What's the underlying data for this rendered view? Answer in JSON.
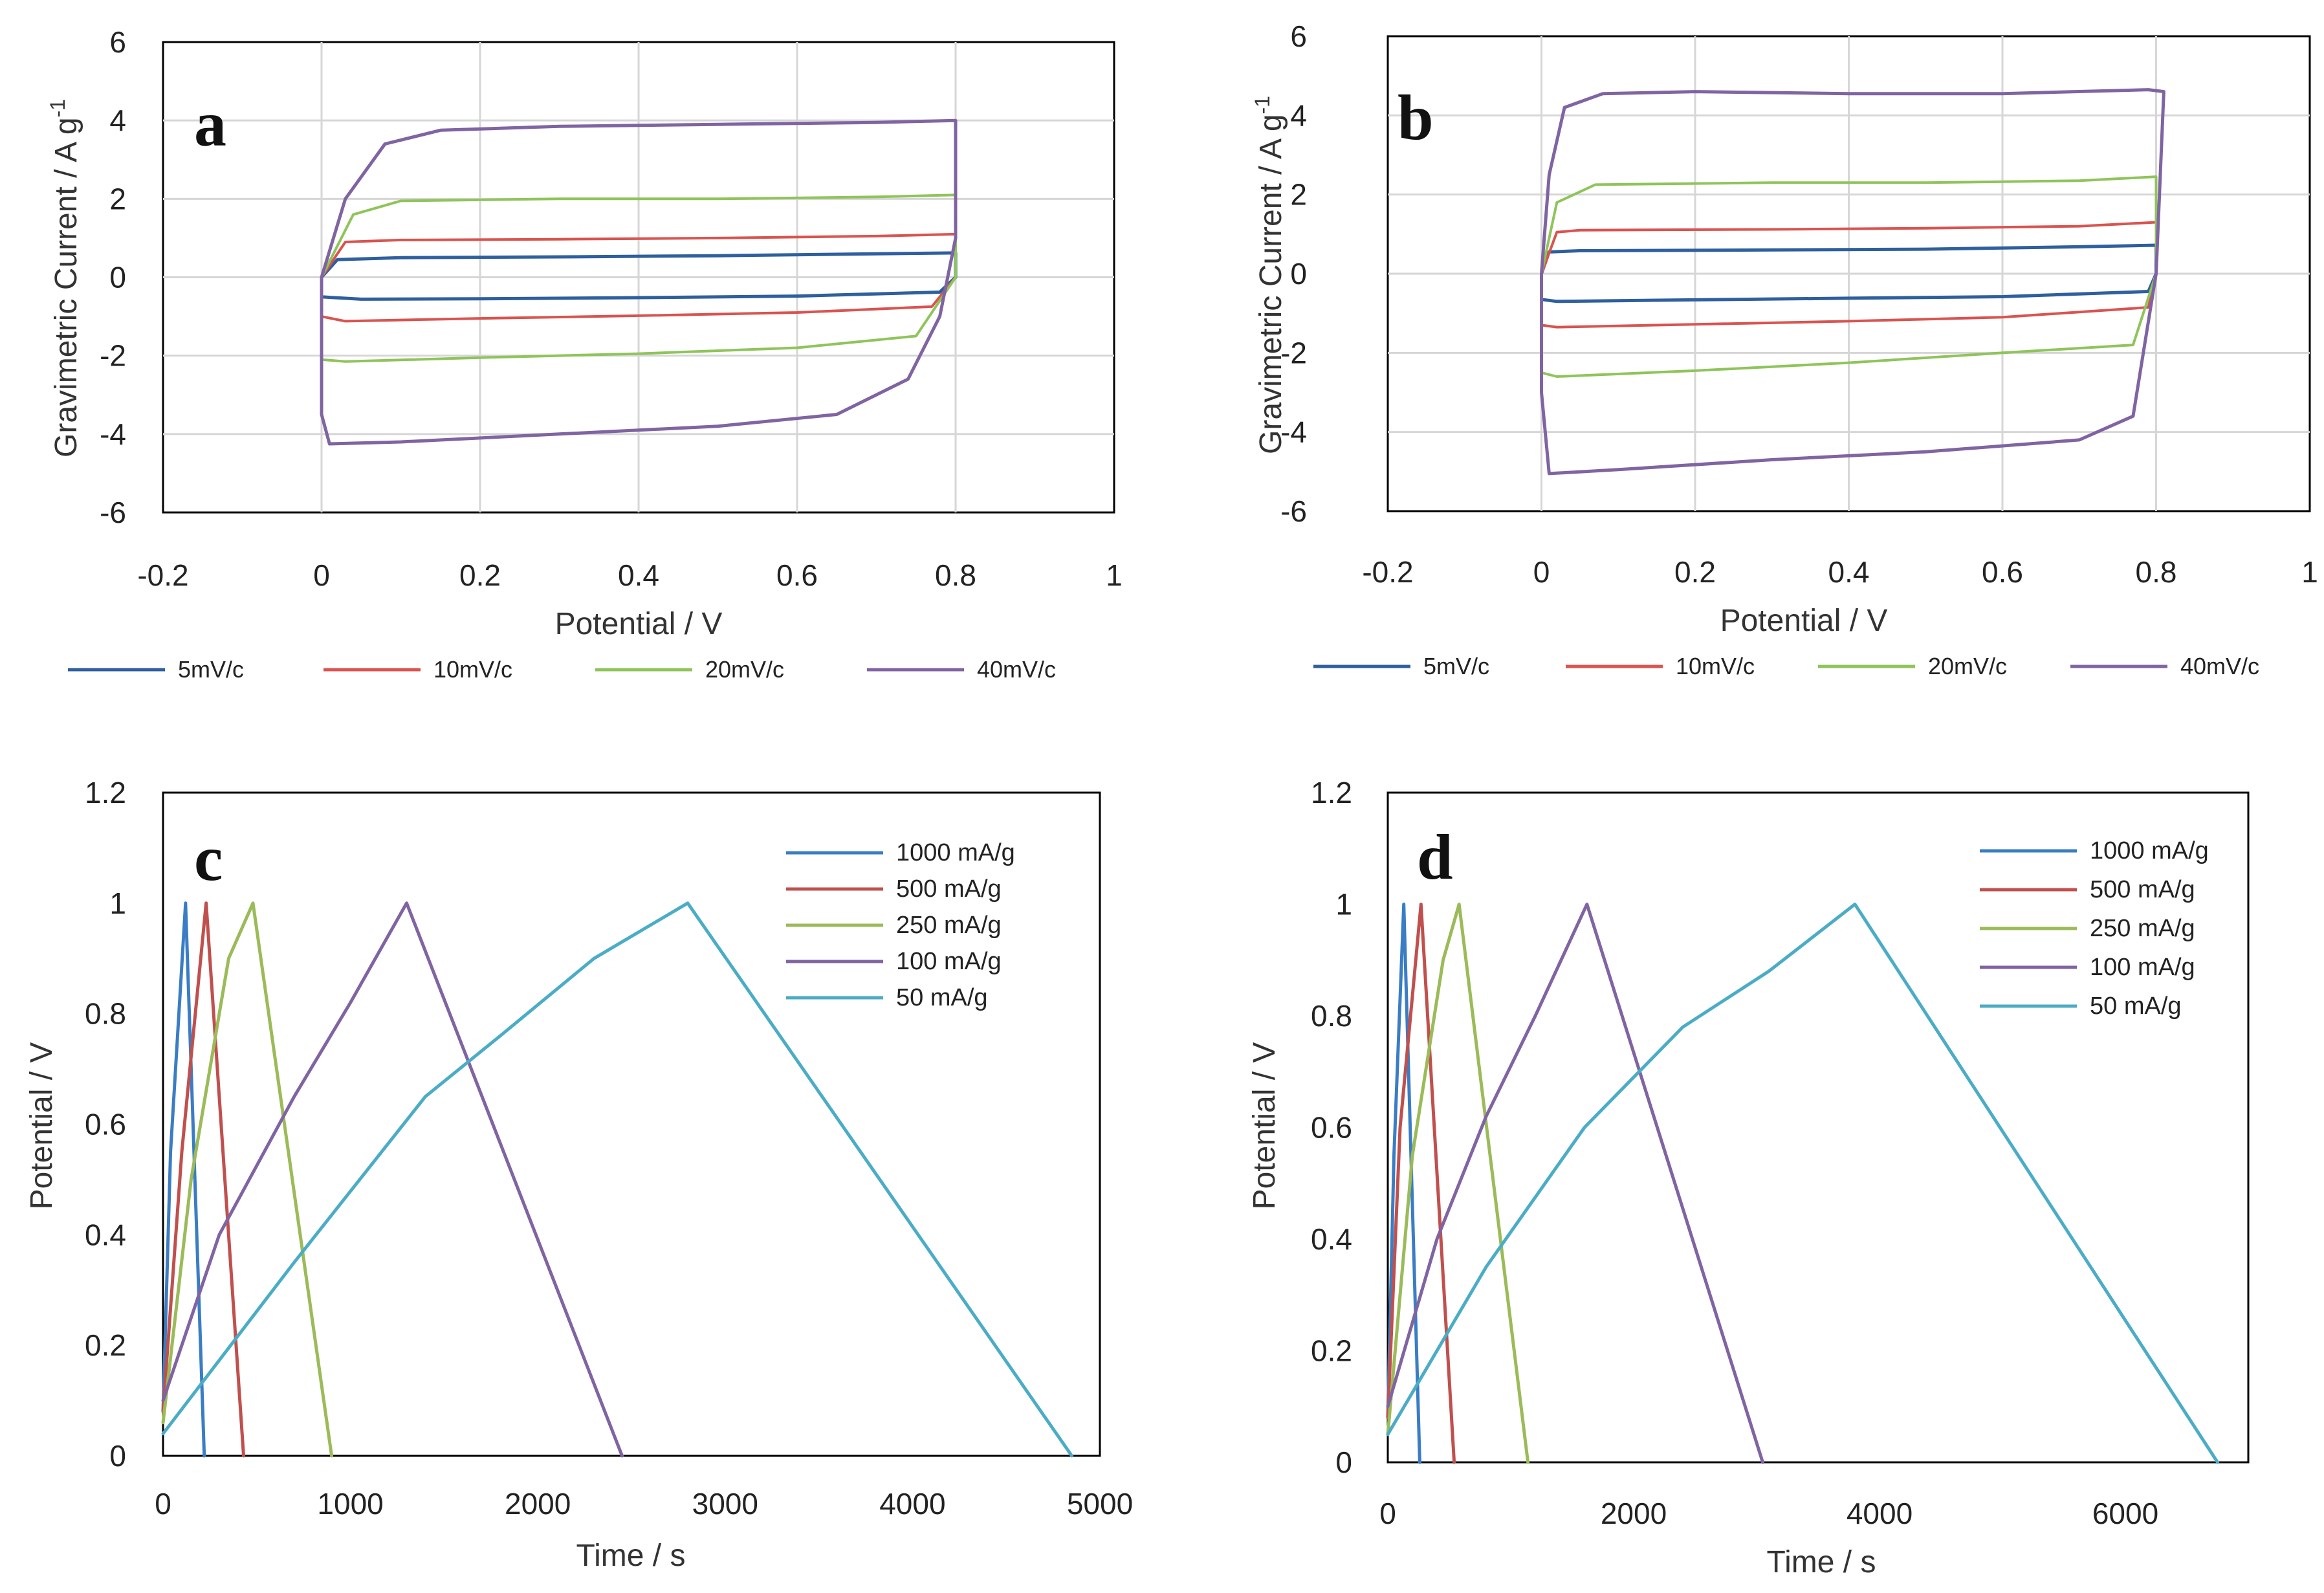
{
  "chart_data": [
    {
      "panel": "a",
      "type": "line",
      "xlabel": "Potential / V",
      "ylabel": "Gravimetric Current / A g",
      "ylabel_sup": "-1",
      "xlim": [
        -0.2,
        1
      ],
      "ylim": [
        -6,
        6
      ],
      "xticks": [
        "-0.2",
        "0",
        "0.2",
        "0.4",
        "0.6",
        "0.8",
        "1"
      ],
      "yticks": [
        "6",
        "4",
        "2",
        "0",
        "-2",
        "-4",
        "-6"
      ],
      "grid": true,
      "legend_position": "bottom",
      "series": [
        {
          "name": "5mV/c",
          "color": "#2e5f9e",
          "width": 5,
          "x": [
            0.0,
            0.02,
            0.1,
            0.3,
            0.5,
            0.7,
            0.8,
            0.8,
            0.78,
            0.6,
            0.4,
            0.2,
            0.05,
            0.0,
            0.0
          ],
          "y": [
            0.0,
            0.45,
            0.5,
            0.52,
            0.55,
            0.6,
            0.62,
            0.0,
            -0.38,
            -0.48,
            -0.52,
            -0.55,
            -0.56,
            -0.5,
            0.0
          ]
        },
        {
          "name": "10mV/c",
          "color": "#d9534f",
          "width": 4,
          "x": [
            0.0,
            0.03,
            0.1,
            0.3,
            0.5,
            0.7,
            0.8,
            0.8,
            0.77,
            0.6,
            0.4,
            0.2,
            0.03,
            0.0,
            0.0
          ],
          "y": [
            0.0,
            0.9,
            0.95,
            0.97,
            1.0,
            1.05,
            1.1,
            0.0,
            -0.75,
            -0.9,
            -0.98,
            -1.05,
            -1.12,
            -1.0,
            0.0
          ]
        },
        {
          "name": "20mV/c",
          "color": "#8fc45a",
          "width": 4,
          "x": [
            0.0,
            0.04,
            0.1,
            0.3,
            0.5,
            0.7,
            0.8,
            0.8,
            0.75,
            0.6,
            0.4,
            0.2,
            0.03,
            0.0,
            0.0
          ],
          "y": [
            0.0,
            1.6,
            1.95,
            2.0,
            2.0,
            2.05,
            2.1,
            0.0,
            -1.5,
            -1.8,
            -1.95,
            -2.05,
            -2.15,
            -2.1,
            0.0
          ]
        },
        {
          "name": "40mV/c",
          "color": "#8064a2",
          "width": 5,
          "x": [
            0.0,
            0.03,
            0.08,
            0.15,
            0.3,
            0.5,
            0.7,
            0.8,
            0.8,
            0.78,
            0.74,
            0.65,
            0.5,
            0.3,
            0.1,
            0.01,
            0.0,
            0.0
          ],
          "y": [
            0.0,
            2.0,
            3.4,
            3.75,
            3.85,
            3.9,
            3.95,
            4.0,
            1.0,
            -1.0,
            -2.6,
            -3.5,
            -3.8,
            -4.0,
            -4.2,
            -4.25,
            -3.5,
            0.0
          ]
        }
      ]
    },
    {
      "panel": "b",
      "type": "line",
      "xlabel": "Potential / V",
      "ylabel": "Gravimetric Current / A g",
      "ylabel_sup": "-1",
      "xlim": [
        -0.2,
        1
      ],
      "ylim": [
        -6,
        6
      ],
      "xticks": [
        "-0.2",
        "0",
        "0.2",
        "0.4",
        "0.6",
        "0.8",
        "1"
      ],
      "yticks": [
        "6",
        "4",
        "2",
        "0",
        "-2",
        "-4",
        "-6"
      ],
      "grid": true,
      "legend_position": "bottom",
      "series": [
        {
          "name": "5mV/c",
          "color": "#2e5f9e",
          "width": 5,
          "x": [
            0.0,
            0.01,
            0.05,
            0.3,
            0.5,
            0.7,
            0.8,
            0.8,
            0.79,
            0.6,
            0.4,
            0.2,
            0.02,
            0.0,
            0.0
          ],
          "y": [
            0.0,
            0.55,
            0.58,
            0.6,
            0.62,
            0.68,
            0.72,
            0.0,
            -0.45,
            -0.58,
            -0.62,
            -0.66,
            -0.7,
            -0.65,
            0.0
          ]
        },
        {
          "name": "10mV/c",
          "color": "#d9534f",
          "width": 4,
          "x": [
            0.0,
            0.02,
            0.05,
            0.3,
            0.5,
            0.7,
            0.8,
            0.8,
            0.79,
            0.6,
            0.4,
            0.2,
            0.02,
            0.0,
            0.0
          ],
          "y": [
            0.0,
            1.05,
            1.1,
            1.12,
            1.15,
            1.2,
            1.3,
            0.0,
            -0.85,
            -1.1,
            -1.2,
            -1.28,
            -1.35,
            -1.3,
            0.0
          ]
        },
        {
          "name": "20mV/c",
          "color": "#8fc45a",
          "width": 4,
          "x": [
            0.0,
            0.02,
            0.07,
            0.3,
            0.5,
            0.7,
            0.8,
            0.8,
            0.77,
            0.6,
            0.4,
            0.2,
            0.02,
            0.0,
            0.0
          ],
          "y": [
            0.0,
            1.8,
            2.25,
            2.3,
            2.3,
            2.35,
            2.45,
            0.0,
            -1.8,
            -2.0,
            -2.25,
            -2.45,
            -2.6,
            -2.5,
            0.0
          ]
        },
        {
          "name": "40mV/c",
          "color": "#8064a2",
          "width": 5,
          "x": [
            0.0,
            0.01,
            0.03,
            0.08,
            0.2,
            0.4,
            0.6,
            0.79,
            0.81,
            0.8,
            0.77,
            0.7,
            0.5,
            0.3,
            0.1,
            0.01,
            0.0,
            0.0
          ],
          "y": [
            0.0,
            2.5,
            4.2,
            4.55,
            4.6,
            4.55,
            4.55,
            4.65,
            4.6,
            0.0,
            -3.6,
            -4.2,
            -4.5,
            -4.7,
            -4.95,
            -5.05,
            -3.0,
            0.0
          ]
        }
      ]
    },
    {
      "panel": "c",
      "type": "line",
      "xlabel": "Time / s",
      "ylabel": "Potential / V",
      "xlim": [
        0,
        5000
      ],
      "ylim": [
        0,
        1.2
      ],
      "xticks": [
        "0",
        "1000",
        "2000",
        "3000",
        "4000",
        "5000"
      ],
      "yticks": [
        "1.2",
        "1",
        "0.8",
        "0.6",
        "0.4",
        "0.2",
        "0"
      ],
      "grid": false,
      "legend_position": "top-right",
      "series": [
        {
          "name": "1000 mA/g",
          "color": "#3a7dc4",
          "width": 5,
          "x": [
            0,
            40,
            120,
            220
          ],
          "y": [
            0.08,
            0.55,
            1.0,
            0.0
          ]
        },
        {
          "name": "500 mA/g",
          "color": "#c0504d",
          "width": 5,
          "x": [
            0,
            100,
            230,
            430
          ],
          "y": [
            0.08,
            0.55,
            1.0,
            0.0
          ]
        },
        {
          "name": "250 mA/g",
          "color": "#9bbb59",
          "width": 5,
          "x": [
            0,
            150,
            350,
            480,
            900
          ],
          "y": [
            0.06,
            0.5,
            0.9,
            1.0,
            0.0
          ]
        },
        {
          "name": "100 mA/g",
          "color": "#8064a2",
          "width": 5,
          "x": [
            0,
            300,
            700,
            1000,
            1300,
            2450
          ],
          "y": [
            0.1,
            0.4,
            0.65,
            0.82,
            1.0,
            0.0
          ]
        },
        {
          "name": "50 mA/g",
          "color": "#4bacc6",
          "width": 5,
          "x": [
            0,
            700,
            1400,
            1800,
            2300,
            2800,
            4850
          ],
          "y": [
            0.04,
            0.35,
            0.65,
            0.76,
            0.9,
            1.0,
            0.0
          ]
        }
      ]
    },
    {
      "panel": "d",
      "type": "line",
      "xlabel": "Time / s",
      "ylabel": "Potential / V",
      "xlim": [
        0,
        7000
      ],
      "ylim": [
        0,
        1.2
      ],
      "xticks": [
        "0",
        "2000",
        "4000",
        "6000"
      ],
      "yticks": [
        "1.2",
        "1",
        "0.8",
        "0.6",
        "0.4",
        "0.2",
        "0"
      ],
      "grid": false,
      "legend_position": "top-right",
      "series": [
        {
          "name": "1000 mA/g",
          "color": "#3a7dc4",
          "width": 5,
          "x": [
            0,
            50,
            130,
            260
          ],
          "y": [
            0.08,
            0.55,
            1.0,
            0.0
          ]
        },
        {
          "name": "500 mA/g",
          "color": "#c0504d",
          "width": 5,
          "x": [
            0,
            100,
            270,
            540
          ],
          "y": [
            0.08,
            0.6,
            1.0,
            0.0
          ]
        },
        {
          "name": "250 mA/g",
          "color": "#9bbb59",
          "width": 5,
          "x": [
            0,
            200,
            450,
            580,
            1140
          ],
          "y": [
            0.05,
            0.55,
            0.9,
            1.0,
            0.0
          ]
        },
        {
          "name": "100 mA/g",
          "color": "#8064a2",
          "width": 5,
          "x": [
            0,
            400,
            800,
            1200,
            1620,
            3050
          ],
          "y": [
            0.1,
            0.4,
            0.62,
            0.8,
            1.0,
            0.0
          ]
        },
        {
          "name": "50 mA/g",
          "color": "#4bacc6",
          "width": 5,
          "x": [
            0,
            800,
            1600,
            2400,
            3100,
            3800,
            6750
          ],
          "y": [
            0.05,
            0.35,
            0.6,
            0.78,
            0.88,
            1.0,
            0.0
          ]
        }
      ]
    }
  ]
}
